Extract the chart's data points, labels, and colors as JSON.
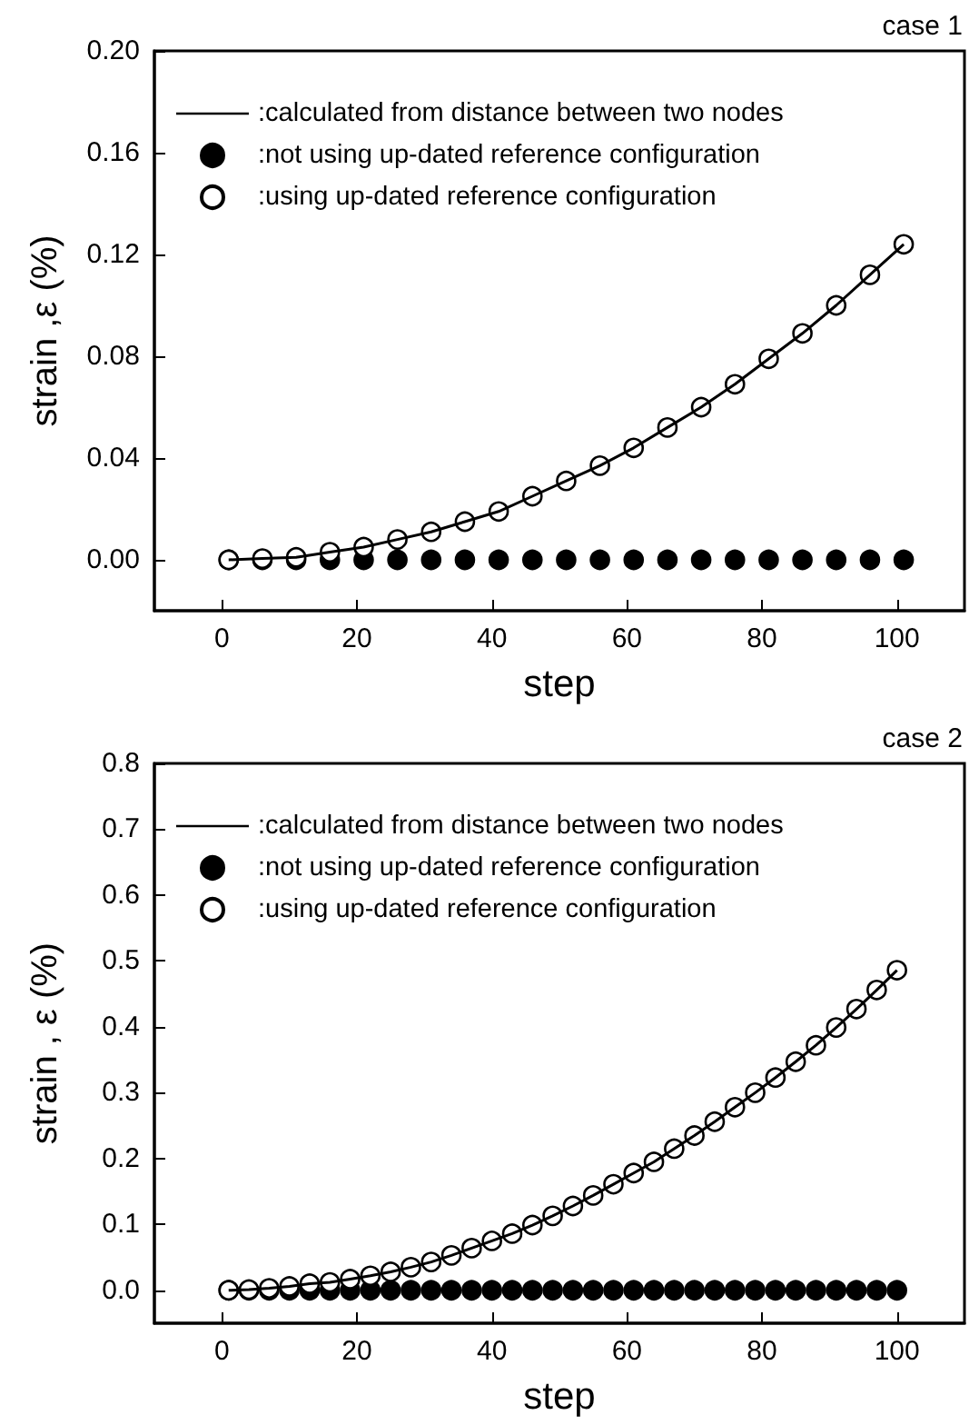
{
  "chart_data": [
    {
      "type": "line",
      "title": "case 1",
      "xlabel": "step",
      "ylabel": "strain ,ε (%)",
      "xlim": [
        -10,
        110
      ],
      "xticks": [
        0,
        20,
        40,
        60,
        80,
        100
      ],
      "ylim": [
        -0.02,
        0.2
      ],
      "yticks": [
        {
          "value": 0,
          "label": "0.00"
        },
        {
          "value": 0.04,
          "label": "0.04"
        },
        {
          "value": 0.08,
          "label": "0.08"
        },
        {
          "value": 0.12,
          "label": "0.12"
        },
        {
          "value": 0.16,
          "label": "0.16"
        },
        {
          "value": 0.2,
          "label": "0.20"
        }
      ],
      "grid": false,
      "legend": "top left",
      "series": [
        {
          "name": ":calculated from distance between two nodes",
          "marker": "none",
          "color": "#000000",
          "x": [
            1,
            6,
            11,
            16,
            21,
            26,
            31,
            36,
            41,
            46,
            51,
            56,
            61,
            66,
            71,
            76,
            81,
            86,
            91,
            96,
            101
          ],
          "values": [
            0,
            0.0005,
            0.001,
            0.003,
            0.005,
            0.008,
            0.011,
            0.015,
            0.019,
            0.025,
            0.031,
            0.037,
            0.044,
            0.052,
            0.06,
            0.069,
            0.079,
            0.089,
            0.1,
            0.112,
            0.124
          ]
        },
        {
          "name": ":not using up-dated reference configuration",
          "type": "scatter",
          "marker": "circle",
          "color": "#000000",
          "x": [
            1,
            6,
            11,
            16,
            21,
            26,
            31,
            36,
            41,
            46,
            51,
            56,
            61,
            66,
            71,
            76,
            81,
            86,
            91,
            96,
            101
          ],
          "values": [
            0,
            0,
            0,
            0,
            0,
            0,
            0,
            0,
            0,
            0,
            0,
            0,
            0,
            0,
            0,
            0,
            0,
            0,
            0,
            0,
            0
          ]
        },
        {
          "name": ":using up-dated reference configuration",
          "type": "scatter",
          "marker": "circle",
          "color": "#ffffff",
          "x": [
            1,
            6,
            11,
            16,
            21,
            26,
            31,
            36,
            41,
            46,
            51,
            56,
            61,
            66,
            71,
            76,
            81,
            86,
            91,
            96,
            101
          ],
          "values": [
            0,
            0.0005,
            0.001,
            0.003,
            0.005,
            0.008,
            0.011,
            0.015,
            0.019,
            0.025,
            0.031,
            0.037,
            0.044,
            0.052,
            0.06,
            0.069,
            0.079,
            0.089,
            0.1,
            0.112,
            0.124
          ]
        }
      ]
    },
    {
      "type": "line",
      "title": "case 2",
      "xlabel": "step",
      "ylabel": "strain , ε (%)",
      "xlim": [
        -10,
        110
      ],
      "xticks": [
        0,
        20,
        40,
        60,
        80,
        100
      ],
      "ylim": [
        -0.05,
        0.8
      ],
      "yticks": [
        {
          "value": 0,
          "label": "0.0"
        },
        {
          "value": 0.1,
          "label": "0.1"
        },
        {
          "value": 0.2,
          "label": "0.2"
        },
        {
          "value": 0.3,
          "label": "0.3"
        },
        {
          "value": 0.4,
          "label": "0.4"
        },
        {
          "value": 0.5,
          "label": "0.5"
        },
        {
          "value": 0.6,
          "label": "0.6"
        },
        {
          "value": 0.7,
          "label": "0.7"
        },
        {
          "value": 0.8,
          "label": "0.8"
        }
      ],
      "grid": false,
      "legend": "top left",
      "series": [
        {
          "name": ":calculated from distance between two nodes",
          "marker": "none",
          "color": "#000000",
          "x": [
            1,
            4,
            7,
            10,
            13,
            16,
            19,
            22,
            25,
            28,
            31,
            34,
            37,
            40,
            43,
            46,
            49,
            52,
            55,
            58,
            61,
            64,
            67,
            70,
            73,
            76,
            79,
            82,
            85,
            88,
            91,
            94,
            97,
            100
          ],
          "values": [
            0,
            0.001,
            0.003,
            0.006,
            0.01,
            0.012,
            0.017,
            0.022,
            0.028,
            0.035,
            0.043,
            0.053,
            0.064,
            0.075,
            0.086,
            0.099,
            0.113,
            0.128,
            0.144,
            0.161,
            0.178,
            0.195,
            0.215,
            0.235,
            0.256,
            0.278,
            0.3,
            0.323,
            0.347,
            0.372,
            0.399,
            0.427,
            0.456,
            0.486
          ]
        },
        {
          "name": ":not using up-dated reference configuration",
          "type": "scatter",
          "marker": "circle",
          "color": "#000000",
          "x": [
            1,
            4,
            7,
            10,
            13,
            16,
            19,
            22,
            25,
            28,
            31,
            34,
            37,
            40,
            43,
            46,
            49,
            52,
            55,
            58,
            61,
            64,
            67,
            70,
            73,
            76,
            79,
            82,
            85,
            88,
            91,
            94,
            97,
            100
          ],
          "values": [
            0,
            0,
            0,
            0,
            0,
            0,
            0,
            0,
            0,
            0,
            0,
            0,
            0,
            0,
            0,
            0,
            0,
            0,
            0,
            0,
            0,
            0,
            0,
            0,
            0,
            0,
            0,
            0,
            0,
            0,
            0,
            0,
            0,
            0
          ]
        },
        {
          "name": ":using up-dated reference configuration",
          "type": "scatter",
          "marker": "circle",
          "color": "#ffffff",
          "x": [
            1,
            4,
            7,
            10,
            13,
            16,
            19,
            22,
            25,
            28,
            31,
            34,
            37,
            40,
            43,
            46,
            49,
            52,
            55,
            58,
            61,
            64,
            67,
            70,
            73,
            76,
            79,
            82,
            85,
            88,
            91,
            94,
            97,
            100
          ],
          "values": [
            0,
            0.001,
            0.003,
            0.006,
            0.01,
            0.012,
            0.017,
            0.022,
            0.028,
            0.035,
            0.043,
            0.053,
            0.064,
            0.075,
            0.086,
            0.099,
            0.113,
            0.128,
            0.144,
            0.161,
            0.178,
            0.195,
            0.215,
            0.235,
            0.256,
            0.278,
            0.3,
            0.323,
            0.347,
            0.372,
            0.399,
            0.427,
            0.456,
            0.486
          ]
        }
      ]
    }
  ]
}
